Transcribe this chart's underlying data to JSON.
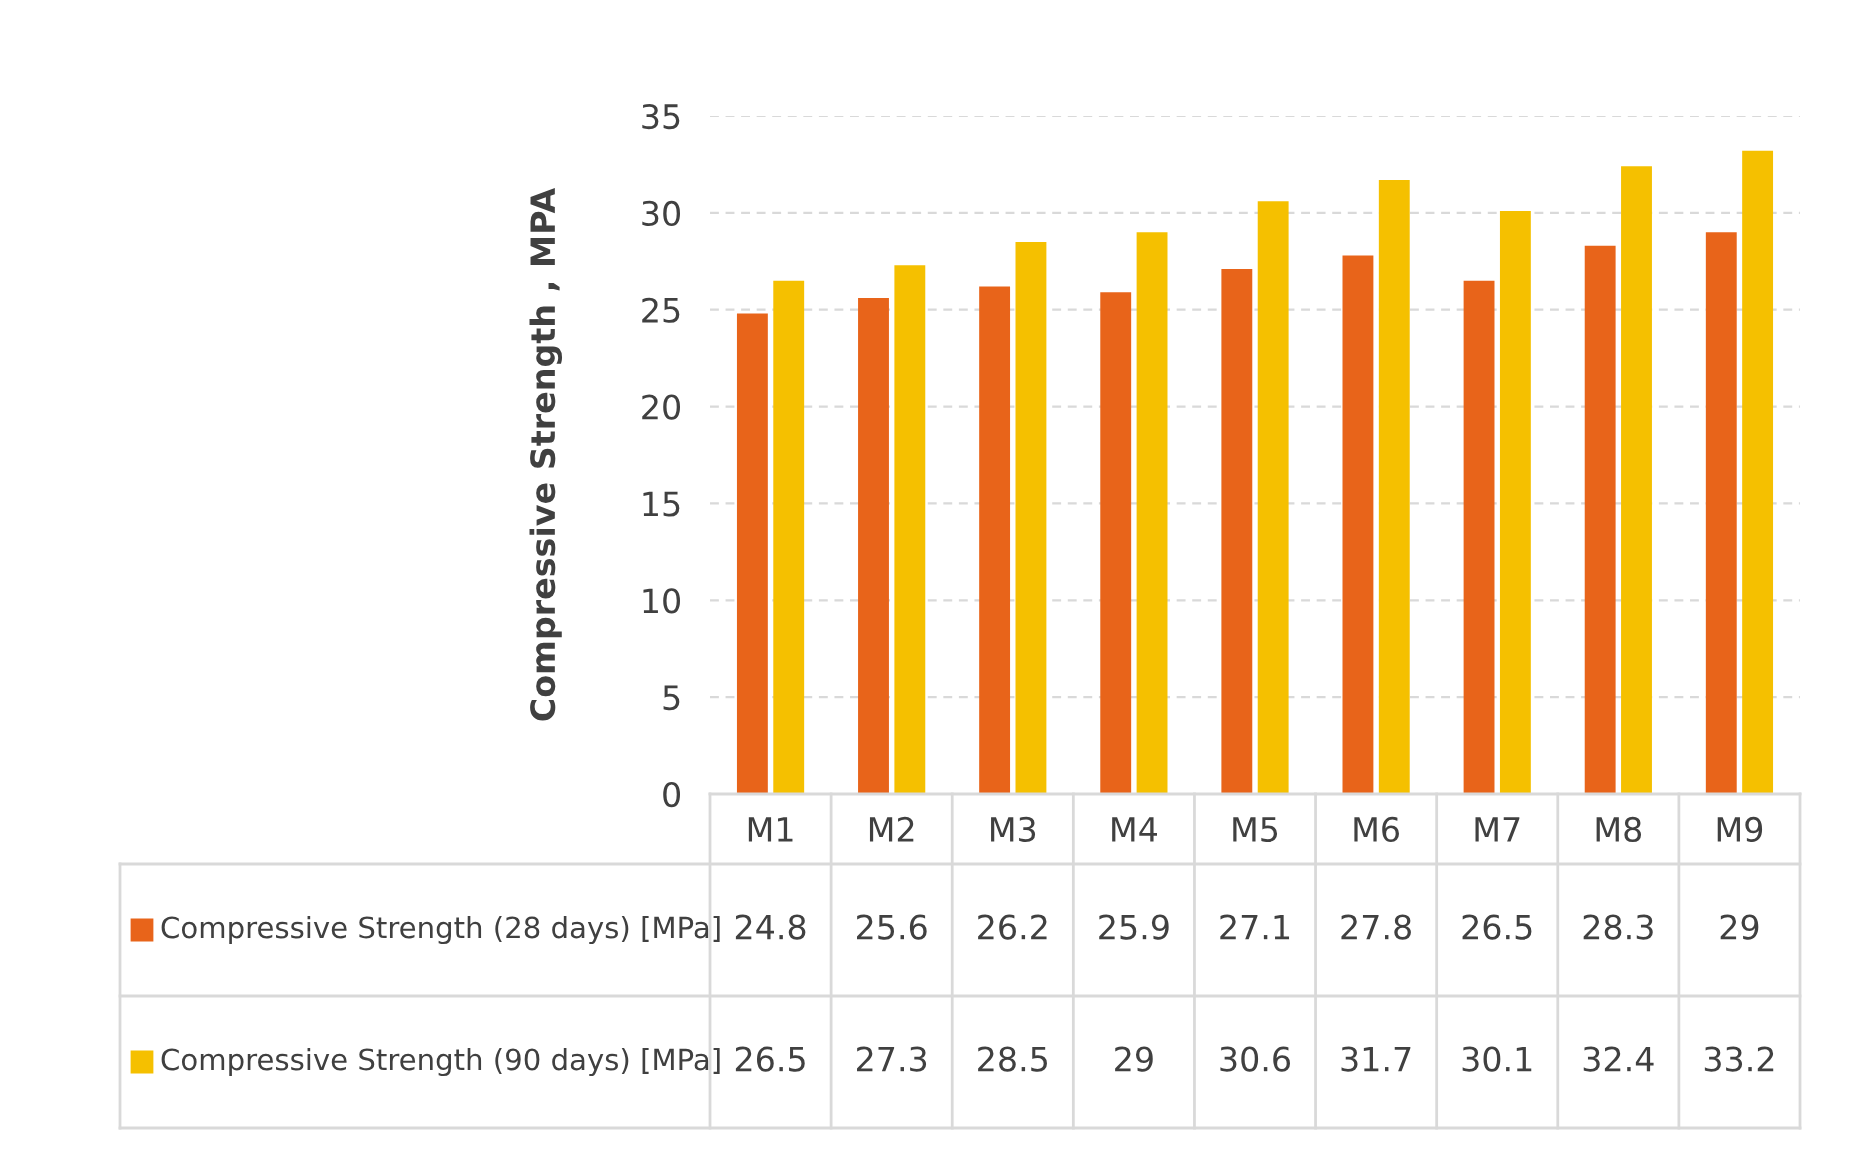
{
  "chart_data": {
    "type": "bar",
    "ylabel": "Compressive Strength , MPA",
    "categories": [
      "M1",
      "M2",
      "M3",
      "M4",
      "M5",
      "M6",
      "M7",
      "M8",
      "M9"
    ],
    "series": [
      {
        "name": "Compressive Strength (28 days) [MPa]",
        "color": "#e8641a",
        "values": [
          24.8,
          25.6,
          26.2,
          25.9,
          27.1,
          27.8,
          26.5,
          28.3,
          29
        ]
      },
      {
        "name": "Compressive Strength (90 days) [MPa]",
        "color": "#f5c000",
        "values": [
          26.5,
          27.3,
          28.5,
          29,
          30.6,
          31.7,
          30.1,
          32.4,
          33.2
        ]
      }
    ],
    "ylim": [
      0,
      35
    ],
    "yticks": [
      0,
      5,
      10,
      15,
      20,
      25,
      30,
      35
    ],
    "grid": "y",
    "legend": "bottom",
    "data_labels": true
  }
}
